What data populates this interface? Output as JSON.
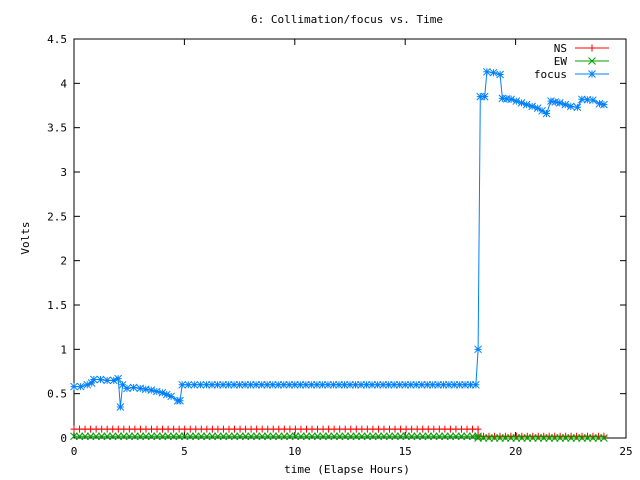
{
  "chart_data": {
    "type": "line",
    "title": "6: Collimation/focus vs. Time",
    "xlabel": "time (Elapse Hours)",
    "ylabel": "Volts",
    "xlim": [
      0,
      25
    ],
    "ylim": [
      0,
      4.5
    ],
    "xticks": [
      "0",
      "5",
      "10",
      "15",
      "20",
      "25"
    ],
    "yticks": [
      "0",
      "0.5",
      "1",
      "1.5",
      "2",
      "2.5",
      "3",
      "3.5",
      "4",
      "4.5"
    ],
    "grid": false,
    "legend_position": "top-right",
    "series": [
      {
        "name": "NS",
        "color": "#ff0000",
        "marker": "plus",
        "points": [
          [
            0,
            0.1
          ],
          [
            18.3,
            0.1
          ],
          [
            18.3,
            0.02
          ],
          [
            24,
            0.02
          ]
        ]
      },
      {
        "name": "EW",
        "color": "#00a000",
        "marker": "cross",
        "points": [
          [
            0,
            0.02
          ],
          [
            18.3,
            0.02
          ],
          [
            18.3,
            0.0
          ],
          [
            24,
            0.0
          ]
        ]
      },
      {
        "name": "focus",
        "color": "#0080ff",
        "marker": "star",
        "points": [
          [
            0,
            0.58
          ],
          [
            0.3,
            0.58
          ],
          [
            0.6,
            0.6
          ],
          [
            0.8,
            0.62
          ],
          [
            0.9,
            0.66
          ],
          [
            1.2,
            0.66
          ],
          [
            1.5,
            0.65
          ],
          [
            1.8,
            0.65
          ],
          [
            2.0,
            0.67
          ],
          [
            2.1,
            0.35
          ],
          [
            2.2,
            0.6
          ],
          [
            2.4,
            0.56
          ],
          [
            2.7,
            0.57
          ],
          [
            3.0,
            0.56
          ],
          [
            3.5,
            0.54
          ],
          [
            4.0,
            0.51
          ],
          [
            4.4,
            0.47
          ],
          [
            4.7,
            0.42
          ],
          [
            4.8,
            0.42
          ],
          [
            4.9,
            0.6
          ],
          [
            6,
            0.6
          ],
          [
            8,
            0.6
          ],
          [
            10,
            0.6
          ],
          [
            12,
            0.6
          ],
          [
            14,
            0.6
          ],
          [
            16,
            0.6
          ],
          [
            18.2,
            0.6
          ],
          [
            18.3,
            1.0
          ],
          [
            18.4,
            3.85
          ],
          [
            18.6,
            3.85
          ],
          [
            18.7,
            4.13
          ],
          [
            19.0,
            4.12
          ],
          [
            19.3,
            4.1
          ],
          [
            19.4,
            3.83
          ],
          [
            19.8,
            3.82
          ],
          [
            20.5,
            3.76
          ],
          [
            21.0,
            3.72
          ],
          [
            21.4,
            3.66
          ],
          [
            21.6,
            3.8
          ],
          [
            22.0,
            3.78
          ],
          [
            22.5,
            3.74
          ],
          [
            22.8,
            3.73
          ],
          [
            23.0,
            3.82
          ],
          [
            23.5,
            3.81
          ],
          [
            23.8,
            3.77
          ],
          [
            24.0,
            3.76
          ]
        ]
      }
    ]
  }
}
